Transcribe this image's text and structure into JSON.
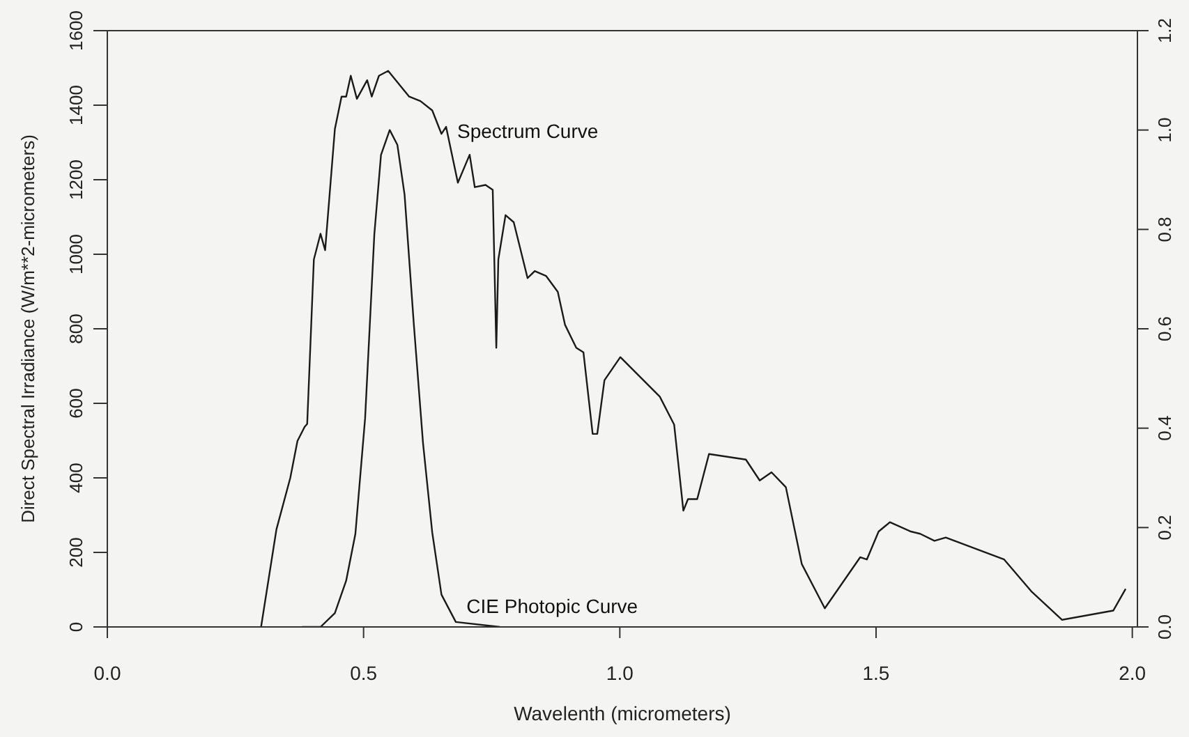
{
  "chart_data": {
    "type": "line",
    "xlabel": "Wavelenth (micrometers)",
    "ylabel": "Direct Spectral Irradiance (W/m**2-micrometers)",
    "xlim": [
      0,
      2.01
    ],
    "xticks": [
      {
        "value": 0,
        "label": "0.0"
      },
      {
        "value": 0.5,
        "label": "0.5"
      },
      {
        "value": 1,
        "label": "1.0"
      },
      {
        "value": 1.5,
        "label": "1.5"
      },
      {
        "value": 2,
        "label": "2.0"
      }
    ],
    "ylim": [
      0,
      1600
    ],
    "yticks": [
      0,
      200,
      400,
      600,
      800,
      1000,
      1200,
      1400,
      1600
    ],
    "y2lim": [
      0,
      1.2
    ],
    "y2ticks": [
      {
        "value": 0,
        "label": "0.0"
      },
      {
        "value": 0.2,
        "label": "0.2"
      },
      {
        "value": 0.4,
        "label": "0.4"
      },
      {
        "value": 0.6,
        "label": "0.6"
      },
      {
        "value": 0.8,
        "label": "0.8"
      },
      {
        "value": 1,
        "label": "1.0"
      },
      {
        "value": 1.2,
        "label": "1.2"
      }
    ],
    "grid": false,
    "legend": false,
    "marker": "none",
    "line_style": "solid",
    "series": [
      {
        "name": "Spectrum Curve",
        "color": "#1a1a1a",
        "x": [
          0.3,
          0.33,
          0.357,
          0.371,
          0.385,
          0.39,
          0.403,
          0.416,
          0.425,
          0.444,
          0.457,
          0.466,
          0.475,
          0.487,
          0.507,
          0.516,
          0.53,
          0.548,
          0.589,
          0.611,
          0.634,
          0.652,
          0.661,
          0.684,
          0.707,
          0.717,
          0.738,
          0.752,
          0.759,
          0.763,
          0.777,
          0.793,
          0.82,
          0.834,
          0.856,
          0.879,
          0.893,
          0.915,
          0.929,
          0.947,
          0.956,
          0.97,
          1.001,
          1.078,
          1.106,
          1.124,
          1.133,
          1.151,
          1.174,
          1.246,
          1.273,
          1.296,
          1.324,
          1.355,
          1.4,
          1.469,
          1.482,
          1.505,
          1.527,
          1.568,
          1.586,
          1.614,
          1.636,
          1.75,
          1.804,
          1.863,
          1.963,
          1.987
        ],
        "values": [
          0,
          262,
          400,
          499,
          537,
          545,
          986,
          1055,
          1011,
          1336,
          1423,
          1423,
          1479,
          1417,
          1467,
          1423,
          1479,
          1492,
          1423,
          1411,
          1386,
          1323,
          1342,
          1192,
          1267,
          1180,
          1186,
          1173,
          749,
          986,
          1105,
          1086,
          936,
          955,
          942,
          899,
          811,
          749,
          737,
          518,
          518,
          662,
          724,
          618,
          543,
          312,
          343,
          343,
          464,
          449,
          393,
          415,
          375,
          169,
          50,
          187,
          181,
          256,
          281,
          256,
          250,
          231,
          240,
          181,
          94,
          19,
          44,
          102
        ]
      },
      {
        "name": "CIE Photopic Curve",
        "axis": "y2",
        "color": "#1a1a1a",
        "x": [
          0.38,
          0.416,
          0.444,
          0.466,
          0.484,
          0.503,
          0.521,
          0.534,
          0.551,
          0.566,
          0.58,
          0.598,
          0.616,
          0.634,
          0.652,
          0.68,
          0.766
        ],
        "values": [
          0,
          0,
          0.028,
          0.093,
          0.187,
          0.42,
          0.79,
          0.95,
          1.0,
          0.97,
          0.87,
          0.61,
          0.37,
          0.19,
          0.065,
          0.01,
          0
        ]
      }
    ]
  }
}
